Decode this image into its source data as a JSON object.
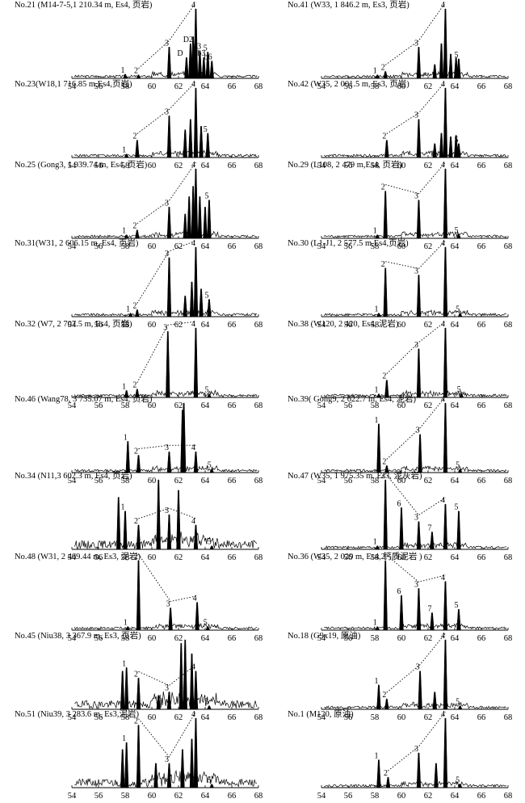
{
  "figure": {
    "x_ticks": [
      54,
      56,
      58,
      60,
      62,
      64,
      66,
      68
    ],
    "x_range": [
      54,
      68
    ]
  },
  "chart_data": [
    {
      "type": "line",
      "title": "No.21 (M14-7-5,1 210.34 m, Es4, 页岩)",
      "labels": [
        {
          "t": "1",
          "x": 58.0
        },
        {
          "t": "2",
          "x": 59.0
        },
        {
          "t": "3",
          "x": 61.3
        },
        {
          "t": "4",
          "x": 63.3
        },
        {
          "t": "5",
          "x": 64.2
        },
        {
          "t": "D",
          "x": 62.3
        },
        {
          "t": "D2",
          "x": 62.9
        },
        {
          "t": "a3",
          "x": 63.6
        },
        {
          "t": "b3",
          "x": 63.9
        },
        {
          "t": "b6",
          "x": 64.4
        }
      ],
      "peaks": [
        {
          "x": 58.0,
          "h": 0.06
        },
        {
          "x": 59.0,
          "h": 0.05
        },
        {
          "x": 61.3,
          "h": 0.45
        },
        {
          "x": 62.6,
          "h": 0.3
        },
        {
          "x": 62.9,
          "h": 0.5
        },
        {
          "x": 63.1,
          "h": 0.6
        },
        {
          "x": 63.3,
          "h": 1.0
        },
        {
          "x": 63.6,
          "h": 0.4
        },
        {
          "x": 63.9,
          "h": 0.3
        },
        {
          "x": 64.2,
          "h": 0.38
        },
        {
          "x": 64.5,
          "h": 0.25
        }
      ]
    },
    {
      "type": "line",
      "title": "No.41 (W33, 1 846.2 m, Es3, 页岩)",
      "labels": [
        {
          "t": "1",
          "x": 58.2
        },
        {
          "t": "2",
          "x": 58.8
        },
        {
          "t": "3",
          "x": 61.3
        },
        {
          "t": "4",
          "x": 63.3
        },
        {
          "t": "5",
          "x": 64.3
        }
      ],
      "peaks": [
        {
          "x": 58.2,
          "h": 0.05
        },
        {
          "x": 58.8,
          "h": 0.1
        },
        {
          "x": 61.3,
          "h": 0.45
        },
        {
          "x": 62.5,
          "h": 0.2
        },
        {
          "x": 63.0,
          "h": 0.5
        },
        {
          "x": 63.3,
          "h": 1.0
        },
        {
          "x": 63.7,
          "h": 0.35
        },
        {
          "x": 64.1,
          "h": 0.3
        },
        {
          "x": 64.3,
          "h": 0.28
        }
      ]
    },
    {
      "type": "line",
      "title": "No.23(W18,1 716.85 m,Es4,页岩)",
      "labels": [
        {
          "t": "1",
          "x": 58.1
        },
        {
          "t": "2",
          "x": 58.9
        },
        {
          "t": "3",
          "x": 61.3
        },
        {
          "t": "4",
          "x": 63.3
        },
        {
          "t": "5",
          "x": 64.2
        }
      ],
      "peaks": [
        {
          "x": 58.1,
          "h": 0.05
        },
        {
          "x": 58.9,
          "h": 0.25
        },
        {
          "x": 61.3,
          "h": 0.6
        },
        {
          "x": 62.5,
          "h": 0.4
        },
        {
          "x": 62.9,
          "h": 0.55
        },
        {
          "x": 63.3,
          "h": 1.0
        },
        {
          "x": 63.7,
          "h": 0.45
        },
        {
          "x": 64.2,
          "h": 0.35
        }
      ]
    },
    {
      "type": "line",
      "title": "No.42 (W35, 2 001.5 m, Es3, 页岩)",
      "labels": [
        {
          "t": "2",
          "x": 58.9
        },
        {
          "t": "3",
          "x": 61.3
        },
        {
          "t": "4",
          "x": 63.3
        },
        {
          "t": "5",
          "x": 64.3
        }
      ],
      "peaks": [
        {
          "x": 58.9,
          "h": 0.25
        },
        {
          "x": 61.3,
          "h": 0.55
        },
        {
          "x": 62.5,
          "h": 0.2
        },
        {
          "x": 63.0,
          "h": 0.35
        },
        {
          "x": 63.3,
          "h": 1.0
        },
        {
          "x": 63.7,
          "h": 0.3
        },
        {
          "x": 64.1,
          "h": 0.32
        },
        {
          "x": 64.3,
          "h": 0.2
        }
      ]
    },
    {
      "type": "line",
      "title": "No.25 (Gong3, 1 939.74 m, Es4, 页岩)",
      "labels": [
        {
          "t": "1",
          "x": 58.1
        },
        {
          "t": "2",
          "x": 58.9
        },
        {
          "t": "3",
          "x": 61.3
        },
        {
          "t": "4",
          "x": 63.3
        },
        {
          "t": "5",
          "x": 64.3
        }
      ],
      "peaks": [
        {
          "x": 58.1,
          "h": 0.05
        },
        {
          "x": 58.9,
          "h": 0.12
        },
        {
          "x": 61.3,
          "h": 0.45
        },
        {
          "x": 62.5,
          "h": 0.35
        },
        {
          "x": 62.8,
          "h": 0.6
        },
        {
          "x": 63.1,
          "h": 0.75
        },
        {
          "x": 63.3,
          "h": 1.0
        },
        {
          "x": 63.6,
          "h": 0.6
        },
        {
          "x": 64.0,
          "h": 0.45
        },
        {
          "x": 64.3,
          "h": 0.55
        }
      ]
    },
    {
      "type": "line",
      "title": "No.29 (L108, 2 479 m,Es4, 页岩)",
      "labels": [
        {
          "t": "1",
          "x": 58.2
        },
        {
          "t": "2",
          "x": 58.8
        },
        {
          "t": "3",
          "x": 61.3
        },
        {
          "t": "4",
          "x": 63.3
        },
        {
          "t": "5",
          "x": 64.3
        }
      ],
      "peaks": [
        {
          "x": 58.2,
          "h": 0.05
        },
        {
          "x": 58.8,
          "h": 0.68
        },
        {
          "x": 61.3,
          "h": 0.55
        },
        {
          "x": 63.3,
          "h": 1.0
        },
        {
          "x": 64.3,
          "h": 0.06
        }
      ]
    },
    {
      "type": "line",
      "title": "No.31(W31, 2 606.15 m, Es4, 页岩)",
      "labels": [
        {
          "t": "1",
          "x": 58.4
        },
        {
          "t": "2",
          "x": 58.9
        },
        {
          "t": "3",
          "x": 61.3
        },
        {
          "t": "4",
          "x": 63.3
        },
        {
          "t": "5",
          "x": 64.3
        }
      ],
      "peaks": [
        {
          "x": 58.4,
          "h": 0.05
        },
        {
          "x": 58.9,
          "h": 0.1
        },
        {
          "x": 61.3,
          "h": 0.85
        },
        {
          "x": 62.5,
          "h": 0.3
        },
        {
          "x": 63.0,
          "h": 0.5
        },
        {
          "x": 63.3,
          "h": 1.0
        },
        {
          "x": 63.7,
          "h": 0.4
        },
        {
          "x": 64.3,
          "h": 0.25
        }
      ]
    },
    {
      "type": "line",
      "title": "No.30 (L1-J1, 2 577.5 m,Es4,页岩)",
      "labels": [
        {
          "t": "1",
          "x": 58.3
        },
        {
          "t": "2",
          "x": 58.8
        },
        {
          "t": "3",
          "x": 61.3
        },
        {
          "t": "4",
          "x": 63.3
        },
        {
          "t": "5",
          "x": 64.4
        }
      ],
      "peaks": [
        {
          "x": 58.3,
          "h": 0.05
        },
        {
          "x": 58.8,
          "h": 0.7
        },
        {
          "x": 61.3,
          "h": 0.6
        },
        {
          "x": 63.3,
          "h": 1.0
        },
        {
          "x": 64.4,
          "h": 0.05
        }
      ]
    },
    {
      "type": "line",
      "title": "No.32 (W7, 2 707.5 m, Es4, 页岩)",
      "labels": [
        {
          "t": "1",
          "x": 58.1
        },
        {
          "t": "2",
          "x": 58.9
        },
        {
          "t": "3",
          "x": 61.2
        },
        {
          "t": "4",
          "x": 63.3
        },
        {
          "t": "5",
          "x": 64.3
        }
      ],
      "peaks": [
        {
          "x": 58.1,
          "h": 0.1
        },
        {
          "x": 58.9,
          "h": 0.12
        },
        {
          "x": 61.2,
          "h": 0.95
        },
        {
          "x": 63.3,
          "h": 1.0
        },
        {
          "x": 64.3,
          "h": 0.05
        }
      ]
    },
    {
      "type": "line",
      "title": "No.38 (W120, 2 420, Es4, 泥岩)",
      "labels": [
        {
          "t": "1",
          "x": 58.3
        },
        {
          "t": "2",
          "x": 58.9
        },
        {
          "t": "3",
          "x": 61.3
        },
        {
          "t": "4",
          "x": 63.3
        },
        {
          "t": "5",
          "x": 64.5
        }
      ],
      "peaks": [
        {
          "x": 58.3,
          "h": 0.05
        },
        {
          "x": 58.9,
          "h": 0.25
        },
        {
          "x": 61.3,
          "h": 0.7
        },
        {
          "x": 63.3,
          "h": 1.0
        },
        {
          "x": 64.5,
          "h": 0.06
        }
      ]
    },
    {
      "type": "line",
      "title": "No.46 (Wang78, 3 735.07 m, Es4, 页岩)",
      "labels": [
        {
          "t": "1",
          "x": 58.2
        },
        {
          "t": "2",
          "x": 59.0
        },
        {
          "t": "3",
          "x": 61.3
        },
        {
          "t": "4",
          "x": 63.3
        },
        {
          "t": "5",
          "x": 64.5
        }
      ],
      "peaks": [
        {
          "x": 58.2,
          "h": 0.45
        },
        {
          "x": 59.0,
          "h": 0.25
        },
        {
          "x": 61.3,
          "h": 0.3
        },
        {
          "x": 62.3,
          "h": 0.9
        },
        {
          "x": 62.4,
          "h": 1.0
        },
        {
          "x": 63.3,
          "h": 0.3
        },
        {
          "x": 64.5,
          "h": 0.05
        }
      ]
    },
    {
      "type": "line",
      "title": "No.39( Gong9, 2 622.7 m, Es4, 泥岩)",
      "labels": [
        {
          "t": "1",
          "x": 58.3
        },
        {
          "t": "2",
          "x": 58.9
        },
        {
          "t": "3",
          "x": 61.4
        },
        {
          "t": "4",
          "x": 63.3
        },
        {
          "t": "5",
          "x": 64.4
        }
      ],
      "peaks": [
        {
          "x": 58.3,
          "h": 0.7
        },
        {
          "x": 58.9,
          "h": 0.1
        },
        {
          "x": 61.4,
          "h": 0.55
        },
        {
          "x": 63.3,
          "h": 1.0
        },
        {
          "x": 64.4,
          "h": 0.05
        }
      ]
    },
    {
      "type": "line",
      "title": "No.34 (N11,3 602.3 m, Es4, 页岩)",
      "labels": [
        {
          "t": "1",
          "x": 58.0
        },
        {
          "t": "2",
          "x": 59.0
        },
        {
          "t": "3",
          "x": 61.3
        },
        {
          "t": "4",
          "x": 63.3
        },
        {
          "t": "5",
          "x": 64.5
        }
      ],
      "peaks": [
        {
          "x": 57.5,
          "h": 0.75
        },
        {
          "x": 58.0,
          "h": 0.55
        },
        {
          "x": 59.0,
          "h": 0.35
        },
        {
          "x": 60.5,
          "h": 1.0
        },
        {
          "x": 61.3,
          "h": 0.5
        },
        {
          "x": 62.0,
          "h": 0.85
        },
        {
          "x": 63.3,
          "h": 0.35
        },
        {
          "x": 64.5,
          "h": 0.05
        }
      ]
    },
    {
      "type": "line",
      "title": "No.47 (W35, 1 975.35 m, Es3, 泥灰岩)",
      "labels": [
        {
          "t": "1",
          "x": 58.2
        },
        {
          "t": "2",
          "x": 58.8
        },
        {
          "t": "3",
          "x": 61.3
        },
        {
          "t": "4",
          "x": 63.3
        },
        {
          "t": "5",
          "x": 64.3
        },
        {
          "t": "6",
          "x": 60.0
        },
        {
          "t": "7",
          "x": 62.3
        }
      ],
      "peaks": [
        {
          "x": 58.2,
          "h": 0.05
        },
        {
          "x": 58.8,
          "h": 1.0
        },
        {
          "x": 60.0,
          "h": 0.6
        },
        {
          "x": 61.3,
          "h": 0.4
        },
        {
          "x": 62.3,
          "h": 0.25
        },
        {
          "x": 63.3,
          "h": 0.65
        },
        {
          "x": 64.3,
          "h": 0.55
        }
      ]
    },
    {
      "type": "line",
      "title": "No.48 (W31, 2 469.44 m, Es3, 泥岩)",
      "labels": [
        {
          "t": "1",
          "x": 58.2
        },
        {
          "t": "2",
          "x": 59.0
        },
        {
          "t": "3",
          "x": 61.4
        },
        {
          "t": "4",
          "x": 63.4
        },
        {
          "t": "5",
          "x": 64.2
        }
      ],
      "peaks": [
        {
          "x": 58.2,
          "h": 0.05
        },
        {
          "x": 59.0,
          "h": 1.0
        },
        {
          "x": 61.4,
          "h": 0.32
        },
        {
          "x": 63.4,
          "h": 0.4
        },
        {
          "x": 64.2,
          "h": 0.05
        }
      ]
    },
    {
      "type": "line",
      "title": "No.36 (W35, 2 029 m, Es4, 钙质泥岩 )",
      "labels": [
        {
          "t": "1",
          "x": 58.2
        },
        {
          "t": "2",
          "x": 58.8
        },
        {
          "t": "3",
          "x": 61.3
        },
        {
          "t": "4",
          "x": 63.3
        },
        {
          "t": "5",
          "x": 64.3
        },
        {
          "t": "6",
          "x": 60.0
        },
        {
          "t": "7",
          "x": 62.3
        }
      ],
      "peaks": [
        {
          "x": 58.2,
          "h": 0.05
        },
        {
          "x": 58.8,
          "h": 1.0
        },
        {
          "x": 60.0,
          "h": 0.5
        },
        {
          "x": 61.3,
          "h": 0.6
        },
        {
          "x": 62.3,
          "h": 0.25
        },
        {
          "x": 63.3,
          "h": 0.7
        },
        {
          "x": 64.3,
          "h": 0.3
        }
      ]
    },
    {
      "type": "line",
      "title": "No.45 (Niu38, 3 367.9 m, Es3, 页岩)",
      "labels": [
        {
          "t": "1",
          "x": 58.1
        },
        {
          "t": "2",
          "x": 59.0
        },
        {
          "t": "3",
          "x": 61.3
        },
        {
          "t": "4",
          "x": 63.3
        },
        {
          "t": "5",
          "x": 64.3
        }
      ],
      "peaks": [
        {
          "x": 57.8,
          "h": 0.55
        },
        {
          "x": 58.1,
          "h": 0.6
        },
        {
          "x": 59.0,
          "h": 0.45
        },
        {
          "x": 60.5,
          "h": 0.2
        },
        {
          "x": 61.3,
          "h": 0.25
        },
        {
          "x": 62.2,
          "h": 0.95
        },
        {
          "x": 62.5,
          "h": 1.0
        },
        {
          "x": 63.0,
          "h": 0.8
        },
        {
          "x": 63.3,
          "h": 0.55
        },
        {
          "x": 64.3,
          "h": 0.05
        }
      ]
    },
    {
      "type": "line",
      "title": "No.18 (G9x19, 原油)",
      "labels": [
        {
          "t": "1",
          "x": 58.3
        },
        {
          "t": "2",
          "x": 58.9
        },
        {
          "t": "3",
          "x": 61.4
        },
        {
          "t": "4",
          "x": 63.3
        },
        {
          "t": "5",
          "x": 64.4
        }
      ],
      "peaks": [
        {
          "x": 58.3,
          "h": 0.35
        },
        {
          "x": 58.9,
          "h": 0.15
        },
        {
          "x": 61.4,
          "h": 0.55
        },
        {
          "x": 62.5,
          "h": 0.25
        },
        {
          "x": 63.3,
          "h": 1.0
        },
        {
          "x": 64.4,
          "h": 0.05
        }
      ]
    },
    {
      "type": "line",
      "title": "No.51 (Niu39, 3 283.6 m, Es3,泥岩)",
      "labels": [
        {
          "t": "1",
          "x": 58.1
        },
        {
          "t": "2",
          "x": 59.0
        },
        {
          "t": "3",
          "x": 61.3
        },
        {
          "t": "4",
          "x": 63.3
        },
        {
          "t": "5",
          "x": 64.5
        }
      ],
      "peaks": [
        {
          "x": 57.8,
          "h": 0.55
        },
        {
          "x": 58.1,
          "h": 0.65
        },
        {
          "x": 59.0,
          "h": 0.9
        },
        {
          "x": 60.3,
          "h": 0.35
        },
        {
          "x": 61.3,
          "h": 0.35
        },
        {
          "x": 62.3,
          "h": 0.55
        },
        {
          "x": 63.0,
          "h": 0.7
        },
        {
          "x": 63.3,
          "h": 1.0
        },
        {
          "x": 64.5,
          "h": 0.05
        }
      ]
    },
    {
      "type": "line",
      "title": "No.1 (M120, 原油)",
      "labels": [
        {
          "t": "1",
          "x": 58.3
        },
        {
          "t": "2",
          "x": 59.0
        },
        {
          "t": "3",
          "x": 61.3
        },
        {
          "t": "4",
          "x": 63.3
        },
        {
          "t": "5",
          "x": 64.4
        }
      ],
      "peaks": [
        {
          "x": 58.3,
          "h": 0.4
        },
        {
          "x": 59.0,
          "h": 0.15
        },
        {
          "x": 61.3,
          "h": 0.5
        },
        {
          "x": 62.6,
          "h": 0.35
        },
        {
          "x": 63.3,
          "h": 1.0
        },
        {
          "x": 64.4,
          "h": 0.05
        }
      ]
    }
  ]
}
